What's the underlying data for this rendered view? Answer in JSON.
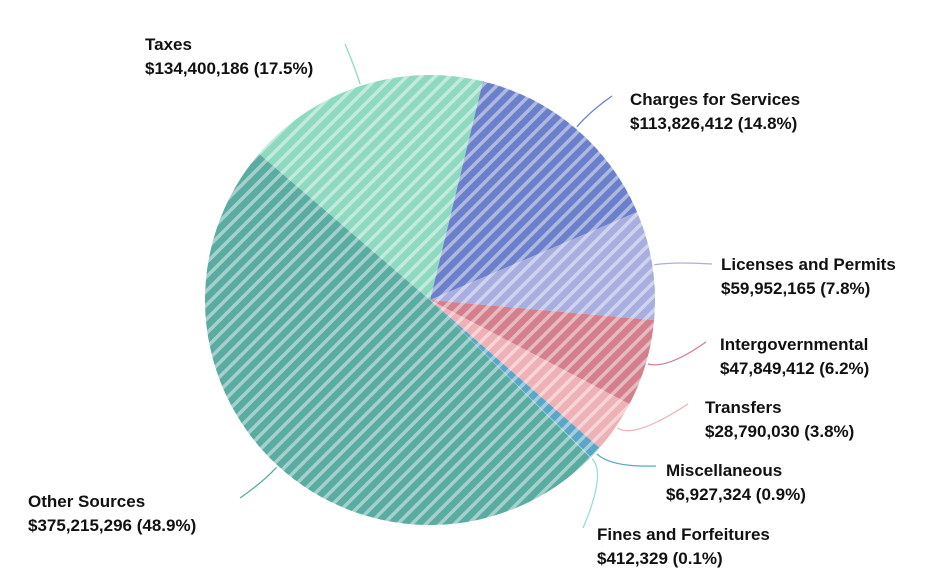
{
  "chart_data": {
    "type": "pie",
    "title": "",
    "slices": [
      {
        "label": "Charges for Services",
        "value": 113826412,
        "value_text": "$113,826,412",
        "percent_text": "(14.8%)",
        "color": "#6b7fcb"
      },
      {
        "label": "Licenses and Permits",
        "value": 59952165,
        "value_text": "$59,952,165",
        "percent_text": "(7.8%)",
        "color": "#a9aee0"
      },
      {
        "label": "Intergovernmental",
        "value": 47849412,
        "value_text": "$47,849,412",
        "percent_text": "(6.2%)",
        "color": "#d47f8c"
      },
      {
        "label": "Transfers",
        "value": 28790030,
        "value_text": "$28,790,030",
        "percent_text": "(3.8%)",
        "color": "#eeb1b6"
      },
      {
        "label": "Miscellaneous",
        "value": 6927324,
        "value_text": "$6,927,324",
        "percent_text": "(0.9%)",
        "color": "#5aa6c6"
      },
      {
        "label": "Fines and Forfeitures",
        "value": 412329,
        "value_text": "$412,329",
        "percent_text": "(0.1%)",
        "color": "#9dd8e0"
      },
      {
        "label": "Other Sources",
        "value": 375215296,
        "value_text": "$375,215,296",
        "percent_text": "(48.9%)",
        "color": "#5aaba1"
      },
      {
        "label": "Taxes",
        "value": 134400186,
        "value_text": "$134,400,186",
        "percent_text": "(17.5%)",
        "color": "#8fd9c1"
      }
    ],
    "legend": "none",
    "pattern": "diagonal-stripes"
  }
}
